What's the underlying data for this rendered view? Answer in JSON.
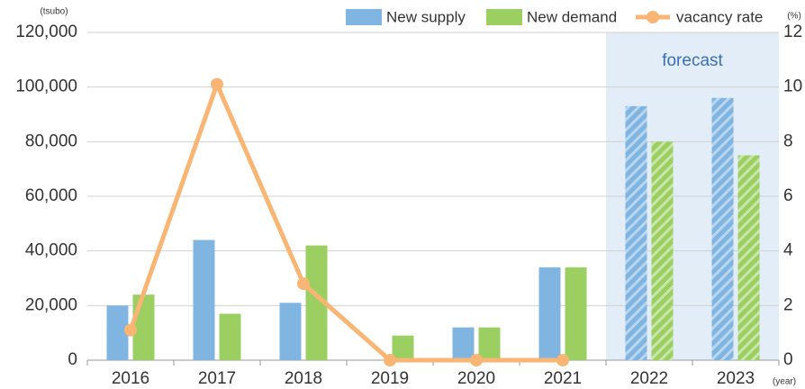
{
  "chart_data": {
    "type": "bar",
    "y_unit": "(tsubo)",
    "y2_unit": "(%)",
    "x_unit": "(year)",
    "categories": [
      "2016",
      "2017",
      "2018",
      "2019",
      "2020",
      "2021",
      "2022",
      "2023"
    ],
    "forecast": {
      "label": "forecast",
      "start": "2022"
    },
    "series": [
      {
        "name": "New supply",
        "color": "#80b5e2",
        "values": [
          20000,
          44000,
          21000,
          null,
          12000,
          34000,
          93000,
          96000
        ]
      },
      {
        "name": "New demand",
        "color": "#9ccf62",
        "values": [
          24000,
          17000,
          42000,
          9000,
          12000,
          34000,
          80000,
          75000
        ]
      },
      {
        "name": "vacancy rate",
        "color": "#f8b574",
        "type": "line",
        "axis": "y2",
        "values": [
          1.1,
          10.1,
          2.8,
          0,
          0,
          0,
          null,
          null
        ]
      }
    ],
    "ylim": [
      0,
      120000
    ],
    "yticks": [
      0,
      {
        "value": 20000,
        "label": "20,000"
      },
      {
        "value": 40000,
        "label": "40,000"
      },
      {
        "value": 60000,
        "label": "60,000"
      },
      {
        "value": 80000,
        "label": "80,000"
      },
      {
        "value": 100000,
        "label": "100,000"
      },
      {
        "value": 120000,
        "label": "120,000"
      }
    ],
    "y2lim": [
      0,
      12
    ],
    "y2ticks": [
      0,
      2,
      4,
      6,
      8,
      10,
      12
    ],
    "grid": true
  }
}
